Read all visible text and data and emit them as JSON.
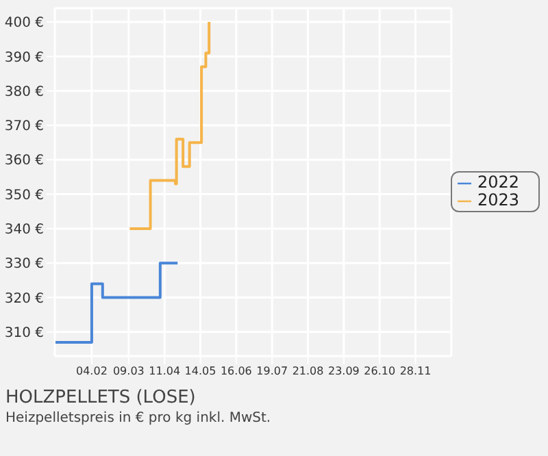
{
  "chart_data": {
    "type": "step",
    "title": "HOLZPELLETS (LOSE)",
    "subtitle": "Heizpelletspreis in € pro kg inkl. MwSt.",
    "xlim": [
      "--01-01",
      "--12-31"
    ],
    "xticks": [
      {
        "value": "--02-04",
        "label": "04.02"
      },
      {
        "value": "--03-09",
        "label": "09.03"
      },
      {
        "value": "--04-11",
        "label": "11.04"
      },
      {
        "value": "--05-14",
        "label": "14.05"
      },
      {
        "value": "--06-16",
        "label": "16.06"
      },
      {
        "value": "--07-19",
        "label": "19.07"
      },
      {
        "value": "--08-21",
        "label": "21.08"
      },
      {
        "value": "--09-23",
        "label": "23.09"
      },
      {
        "value": "--10-26",
        "label": "26.10"
      },
      {
        "value": "--11-28",
        "label": "28.11"
      }
    ],
    "ylim": [
      303,
      404
    ],
    "yticks": [
      {
        "value": 310,
        "label": "310 €"
      },
      {
        "value": 320,
        "label": "320 €"
      },
      {
        "value": 330,
        "label": "330 €"
      },
      {
        "value": 340,
        "label": "340 €"
      },
      {
        "value": 350,
        "label": "350 €"
      },
      {
        "value": 360,
        "label": "360 €"
      },
      {
        "value": 370,
        "label": "370 €"
      },
      {
        "value": 380,
        "label": "380 €"
      },
      {
        "value": 390,
        "label": "390 €"
      },
      {
        "value": 400,
        "label": "400 €"
      }
    ],
    "grid": true,
    "legend": "right",
    "marker": "none",
    "series": [
      {
        "name": "2022",
        "color": "#4a86d8",
        "x": [
          "--01-01",
          "--02-04",
          "--02-14",
          "--04-07",
          "--04-23"
        ],
        "values": [
          307,
          324,
          320,
          330,
          330
        ]
      },
      {
        "name": "2023",
        "color": "#f5b44a",
        "x": [
          "--03-10",
          "--03-29",
          "--04-21",
          "--04-22",
          "--04-28",
          "--05-04",
          "--05-15",
          "--05-19",
          "--05-22"
        ],
        "values": [
          340,
          354,
          353,
          366,
          358,
          365,
          387,
          391,
          400
        ]
      }
    ]
  }
}
